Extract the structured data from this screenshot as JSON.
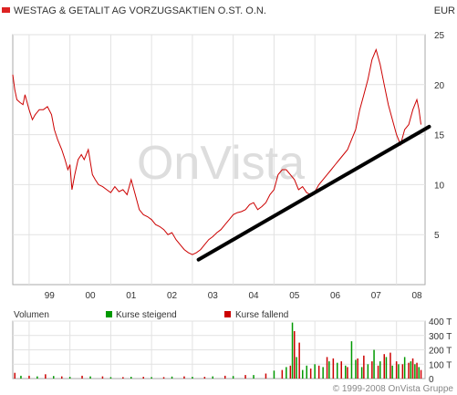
{
  "header": {
    "title": "WESTAG & GETALIT AG VORZUGSAKTIEN O.ST. O.N.",
    "currency": "EUR",
    "title_marker_color": "#dd2222"
  },
  "watermark": "OnVista",
  "footer": {
    "copyright": "© 1999-2008 OnVista Gruppe"
  },
  "volume_legend": {
    "label": "Volumen",
    "up_label": "Kurse steigend",
    "down_label": "Kurse fallend",
    "up_color": "#009900",
    "down_color": "#cc0000"
  },
  "chart_data": [
    {
      "type": "line",
      "title": "WESTAG & GETALIT AG VORZUGSAKTIEN O.ST. O.N.",
      "ylabel": "EUR",
      "ylim": [
        0,
        25
      ],
      "yticks": [
        "5",
        "10",
        "15",
        "20",
        "25"
      ],
      "xlim": [
        1998.6,
        2008.7
      ],
      "xticks": [
        {
          "label": "99",
          "value": 1999
        },
        {
          "label": "00",
          "value": 2000
        },
        {
          "label": "01",
          "value": 2001
        },
        {
          "label": "02",
          "value": 2002
        },
        {
          "label": "03",
          "value": 2003
        },
        {
          "label": "04",
          "value": 2004
        },
        {
          "label": "05",
          "value": 2005
        },
        {
          "label": "06",
          "value": 2006
        },
        {
          "label": "07",
          "value": 2007
        },
        {
          "label": "08",
          "value": 2008
        }
      ],
      "grid": true,
      "series": [
        {
          "role": "price",
          "color": "#cc0000",
          "x": [
            1998.6,
            1998.65,
            1998.7,
            1998.78,
            1998.85,
            1998.9,
            1999.0,
            1999.08,
            1999.15,
            1999.25,
            1999.35,
            1999.45,
            1999.55,
            1999.62,
            1999.7,
            1999.8,
            1999.88,
            1999.95,
            2000.0,
            2000.05,
            2000.12,
            2000.2,
            2000.28,
            2000.35,
            2000.45,
            2000.55,
            2000.62,
            2000.7,
            2000.8,
            2000.9,
            2001.0,
            2001.1,
            2001.2,
            2001.3,
            2001.4,
            2001.5,
            2001.6,
            2001.7,
            2001.8,
            2001.9,
            2002.0,
            2002.1,
            2002.2,
            2002.3,
            2002.4,
            2002.5,
            2002.6,
            2002.7,
            2002.8,
            2002.9,
            2003.0,
            2003.1,
            2003.2,
            2003.3,
            2003.4,
            2003.5,
            2003.6,
            2003.7,
            2003.8,
            2003.9,
            2004.0,
            2004.1,
            2004.2,
            2004.3,
            2004.4,
            2004.5,
            2004.6,
            2004.7,
            2004.8,
            2004.9,
            2005.0,
            2005.1,
            2005.2,
            2005.3,
            2005.4,
            2005.5,
            2005.6,
            2005.7,
            2005.8,
            2005.9,
            2006.0,
            2006.1,
            2006.2,
            2006.3,
            2006.4,
            2006.5,
            2006.6,
            2006.7,
            2006.8,
            2006.9,
            2007.0,
            2007.1,
            2007.2,
            2007.3,
            2007.4,
            2007.5,
            2007.6,
            2007.7,
            2007.8,
            2007.9,
            2008.0,
            2008.1,
            2008.2,
            2008.3,
            2008.4,
            2008.5,
            2008.55,
            2008.6
          ],
          "values": [
            21.0,
            19.5,
            18.5,
            18.2,
            18.0,
            19.0,
            17.5,
            16.5,
            17.0,
            17.5,
            17.5,
            17.8,
            17.0,
            15.5,
            14.5,
            13.5,
            12.5,
            11.5,
            12.0,
            9.5,
            11.0,
            12.5,
            13.0,
            12.5,
            13.5,
            11.0,
            10.5,
            10.0,
            9.8,
            9.5,
            9.2,
            9.8,
            9.3,
            9.5,
            9.0,
            10.5,
            9.0,
            7.5,
            7.0,
            6.8,
            6.5,
            6.0,
            5.8,
            5.5,
            5.0,
            5.2,
            4.5,
            4.0,
            3.5,
            3.2,
            3.0,
            3.2,
            3.5,
            4.0,
            4.5,
            4.8,
            5.2,
            5.5,
            6.0,
            6.5,
            7.0,
            7.2,
            7.3,
            7.5,
            8.0,
            8.2,
            7.5,
            7.8,
            8.2,
            9.0,
            9.5,
            11.0,
            11.5,
            11.5,
            11.0,
            10.5,
            9.5,
            9.8,
            9.2,
            9.0,
            9.3,
            10.0,
            10.5,
            11.0,
            11.5,
            12.0,
            12.5,
            13.0,
            13.5,
            14.5,
            15.5,
            17.5,
            19.0,
            20.5,
            22.5,
            23.5,
            22.0,
            20.0,
            18.0,
            16.5,
            15.0,
            14.0,
            15.5,
            16.0,
            17.5,
            18.5,
            17.5,
            16.0
          ]
        },
        {
          "role": "trendline",
          "color": "#000000",
          "x": [
            2003.15,
            2008.8
          ],
          "values": [
            2.5,
            15.8
          ]
        }
      ]
    },
    {
      "type": "bar",
      "title": "Volumen",
      "ylim": [
        0,
        400
      ],
      "yticks": [
        "0",
        "100 T",
        "200 T",
        "300 T",
        "400 T"
      ],
      "xlim": [
        1998.6,
        2008.7
      ],
      "legend": [
        "Kurse steigend",
        "Kurse fallend"
      ],
      "series": [
        {
          "name": "Kurse steigend",
          "color": "#009900",
          "x": [
            1998.8,
            1999.2,
            1999.6,
            2000.0,
            2000.5,
            2001.0,
            2001.5,
            2002.0,
            2002.5,
            2003.0,
            2003.5,
            2004.0,
            2004.5,
            2005.0,
            2005.3,
            2005.45,
            2005.55,
            2005.7,
            2005.8,
            2006.0,
            2006.2,
            2006.35,
            2006.55,
            2006.75,
            2006.9,
            2007.0,
            2007.15,
            2007.3,
            2007.45,
            2007.6,
            2007.75,
            2007.9,
            2008.05,
            2008.2,
            2008.35,
            2008.45,
            2008.55
          ],
          "values": [
            20,
            15,
            18,
            12,
            15,
            10,
            12,
            10,
            14,
            12,
            15,
            18,
            25,
            55,
            80,
            390,
            150,
            60,
            90,
            100,
            80,
            120,
            110,
            90,
            260,
            130,
            80,
            100,
            200,
            120,
            150,
            90,
            100,
            150,
            120,
            100,
            80
          ]
        },
        {
          "name": "Kurse fallend",
          "color": "#cc0000",
          "x": [
            1998.65,
            1999.0,
            1999.4,
            1999.8,
            2000.3,
            2000.8,
            2001.3,
            2001.8,
            2002.3,
            2002.8,
            2003.3,
            2003.8,
            2004.3,
            2004.8,
            2005.2,
            2005.4,
            2005.5,
            2005.62,
            2005.9,
            2006.1,
            2006.3,
            2006.45,
            2006.65,
            2006.8,
            2007.05,
            2007.2,
            2007.4,
            2007.55,
            2007.7,
            2007.85,
            2008.0,
            2008.15,
            2008.3,
            2008.4,
            2008.5,
            2008.6
          ],
          "values": [
            40,
            20,
            30,
            15,
            20,
            15,
            10,
            12,
            10,
            15,
            12,
            20,
            25,
            35,
            60,
            90,
            330,
            250,
            70,
            90,
            150,
            140,
            120,
            80,
            140,
            160,
            120,
            90,
            170,
            180,
            120,
            100,
            110,
            140,
            110,
            60
          ]
        }
      ]
    }
  ]
}
